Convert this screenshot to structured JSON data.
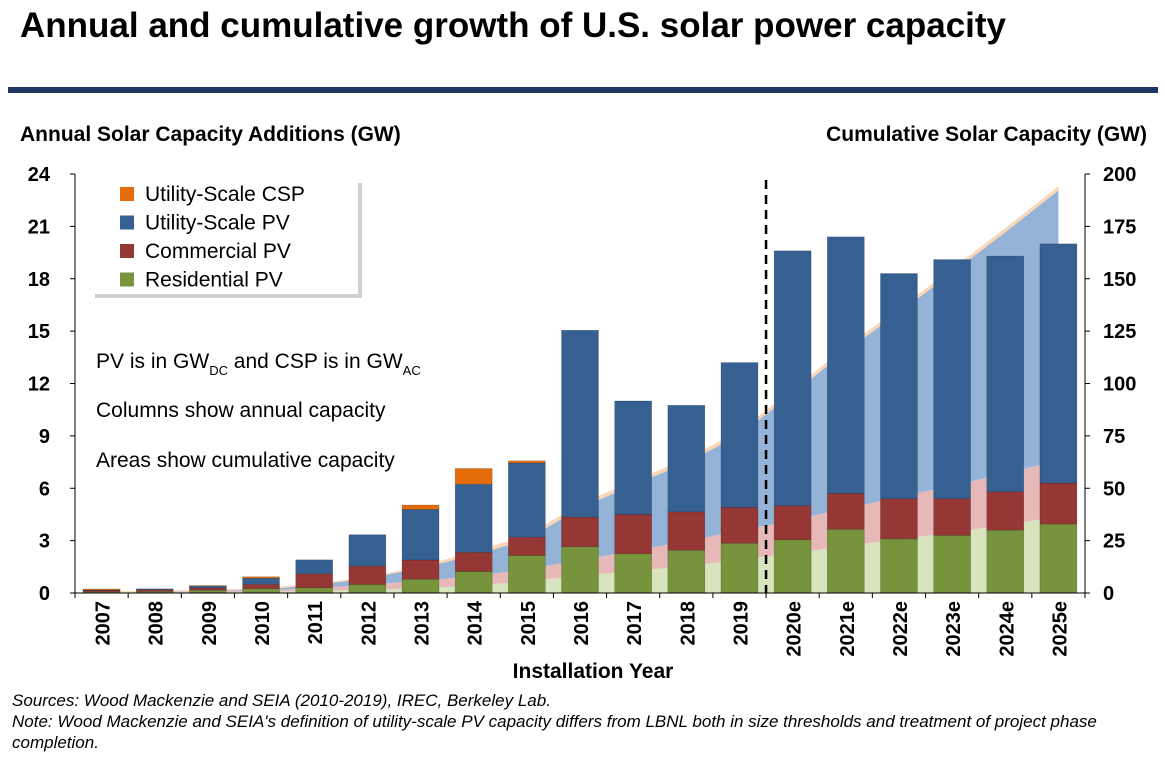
{
  "title": "Annual and cumulative growth of U.S. solar power capacity",
  "left_axis_title": "Annual Solar Capacity Additions (GW)",
  "right_axis_title": "Cumulative Solar Capacity (GW)",
  "annotations": {
    "units_prefix": "PV is in GW",
    "units_dc": "DC",
    "units_mid": " and CSP is in GW",
    "units_ac": "AC",
    "columns_note": "Columns show annual capacity",
    "areas_note": "Areas show cumulative capacity"
  },
  "notes": {
    "sources": "Sources: Wood Mackenzie and SEIA (2010-2019), IREC, Berkeley Lab.",
    "note": "Note: Wood Mackenzie and SEIA's definition of utility-scale PV capacity differs from LBNL both in size thresholds and treatment of project phase completion."
  },
  "colors": {
    "utility_csp": "#e46c0a",
    "utility_pv": "#366092",
    "commercial_pv": "#953735",
    "residential_pv": "#77933c",
    "cum_utility_pv": "#95b3d7",
    "cum_commercial_pv": "#e6b9b8",
    "cum_residential_pv": "#d7e4bd",
    "cum_csp": "#fcd5b5",
    "title_rule": "#1f3864"
  },
  "chart_data": {
    "type": "bar",
    "stacked": true,
    "xlabel": "Installation Year",
    "categories": [
      "2007",
      "2008",
      "2009",
      "2010",
      "2011",
      "2012",
      "2013",
      "2014",
      "2015",
      "2016",
      "2017",
      "2018",
      "2019",
      "2020e",
      "2021e",
      "2022e",
      "2023e",
      "2024e",
      "2025e"
    ],
    "y_left": {
      "label": "Annual Solar Capacity Additions (GW)",
      "range": [
        0,
        24
      ],
      "ticks": [
        0,
        3,
        6,
        9,
        12,
        15,
        18,
        21,
        24
      ]
    },
    "y_right": {
      "label": "Cumulative Solar Capacity (GW)",
      "range": [
        0,
        200
      ],
      "ticks": [
        0,
        25,
        50,
        75,
        100,
        125,
        150,
        175,
        200
      ]
    },
    "forecast_divider_after": "2019",
    "series": [
      {
        "name": "Residential PV",
        "kind": "column",
        "values": [
          0.07,
          0.09,
          0.16,
          0.25,
          0.3,
          0.49,
          0.79,
          1.23,
          2.15,
          2.65,
          2.25,
          2.45,
          2.85,
          3.05,
          3.65,
          3.1,
          3.3,
          3.6,
          3.95
        ]
      },
      {
        "name": "Commercial PV",
        "kind": "column",
        "values": [
          0.08,
          0.1,
          0.13,
          0.25,
          0.8,
          1.05,
          1.1,
          1.1,
          1.05,
          1.7,
          2.25,
          2.2,
          2.05,
          1.95,
          2.05,
          2.3,
          2.1,
          2.2,
          2.35
        ]
      },
      {
        "name": "Utility-Scale PV",
        "kind": "column",
        "values": [
          0.02,
          0.05,
          0.12,
          0.35,
          0.8,
          1.8,
          2.9,
          3.9,
          4.25,
          10.7,
          6.5,
          6.1,
          8.3,
          14.6,
          14.7,
          12.9,
          13.7,
          13.5,
          13.7
        ]
      },
      {
        "name": "Utility-Scale CSP",
        "kind": "column",
        "values": [
          0.06,
          0.0,
          0.01,
          0.08,
          0.0,
          0.0,
          0.25,
          0.9,
          0.12,
          0.0,
          0.0,
          0.0,
          0.0,
          0.0,
          0.0,
          0.0,
          0.0,
          0.0,
          0.0
        ]
      },
      {
        "name": "Residential PV (cumulative)",
        "kind": "area",
        "values": [
          0.1,
          0.2,
          0.4,
          0.6,
          1.0,
          1.5,
          2.3,
          3.5,
          5.6,
          8.3,
          10.5,
          12.9,
          15.8,
          18.9,
          22.5,
          25.6,
          28.9,
          32.5,
          36.5
        ]
      },
      {
        "name": "Commercial PV (cumulative)",
        "kind": "area",
        "values": [
          0.1,
          0.2,
          0.4,
          0.6,
          1.4,
          2.4,
          3.5,
          4.6,
          5.7,
          7.4,
          9.6,
          11.8,
          13.9,
          15.8,
          17.9,
          20.2,
          22.3,
          24.5,
          26.8
        ]
      },
      {
        "name": "Utility-Scale PV (cumulative)",
        "kind": "area",
        "values": [
          0.0,
          0.1,
          0.2,
          0.5,
          1.3,
          3.1,
          6.0,
          9.9,
          14.2,
          24.9,
          31.4,
          37.5,
          45.8,
          60.4,
          75.1,
          88.0,
          101.7,
          115.2,
          128.9
        ]
      },
      {
        "name": "Utility-Scale CSP (cumulative)",
        "kind": "area",
        "values": [
          0.5,
          0.5,
          0.5,
          0.6,
          0.6,
          0.6,
          0.9,
          1.8,
          1.9,
          1.9,
          1.9,
          1.9,
          1.9,
          1.9,
          1.9,
          1.9,
          1.9,
          1.9,
          1.9
        ]
      }
    ],
    "legend": {
      "placement": "top-left",
      "entries": [
        "Utility-Scale CSP",
        "Utility-Scale PV",
        "Commercial PV",
        "Residential PV"
      ]
    }
  }
}
